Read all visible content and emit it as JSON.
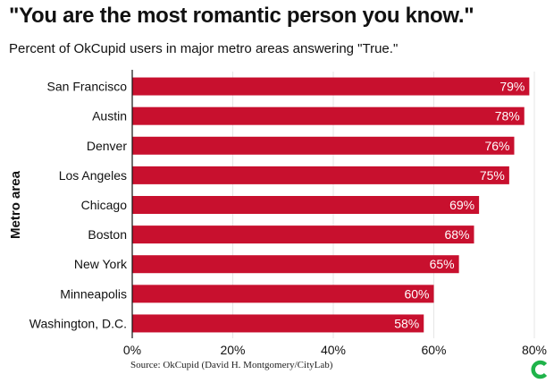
{
  "header": {
    "title": "\"You are the most romantic person you know.\"",
    "subtitle": "Percent of OkCupid users in major metro areas answering \"True.\""
  },
  "footer": {
    "source": "Source: OkCupid (David H. Montgomery/CityLab)"
  },
  "colors": {
    "bar": "#C8102E",
    "grid": "#e6e6e6",
    "logo": "#1fb34a"
  },
  "chart_data": {
    "type": "bar",
    "orientation": "horizontal",
    "title": "\"You are the most romantic person you know.\"",
    "subtitle": "Percent of OkCupid users in major metro areas answering \"True.\"",
    "xlabel": "",
    "ylabel": "Metro area",
    "xlim": [
      0,
      80
    ],
    "xticks": [
      "0%",
      "20%",
      "40%",
      "60%",
      "80%"
    ],
    "grid": true,
    "categories": [
      "San Francisco",
      "Austin",
      "Denver",
      "Los Angeles",
      "Chicago",
      "Boston",
      "New York",
      "Minneapolis",
      "Washington, D.C."
    ],
    "values": [
      79,
      78,
      76,
      75,
      69,
      68,
      65,
      60,
      58
    ],
    "data_labels": [
      "79%",
      "78%",
      "76%",
      "75%",
      "69%",
      "68%",
      "65%",
      "60%",
      "58%"
    ]
  }
}
